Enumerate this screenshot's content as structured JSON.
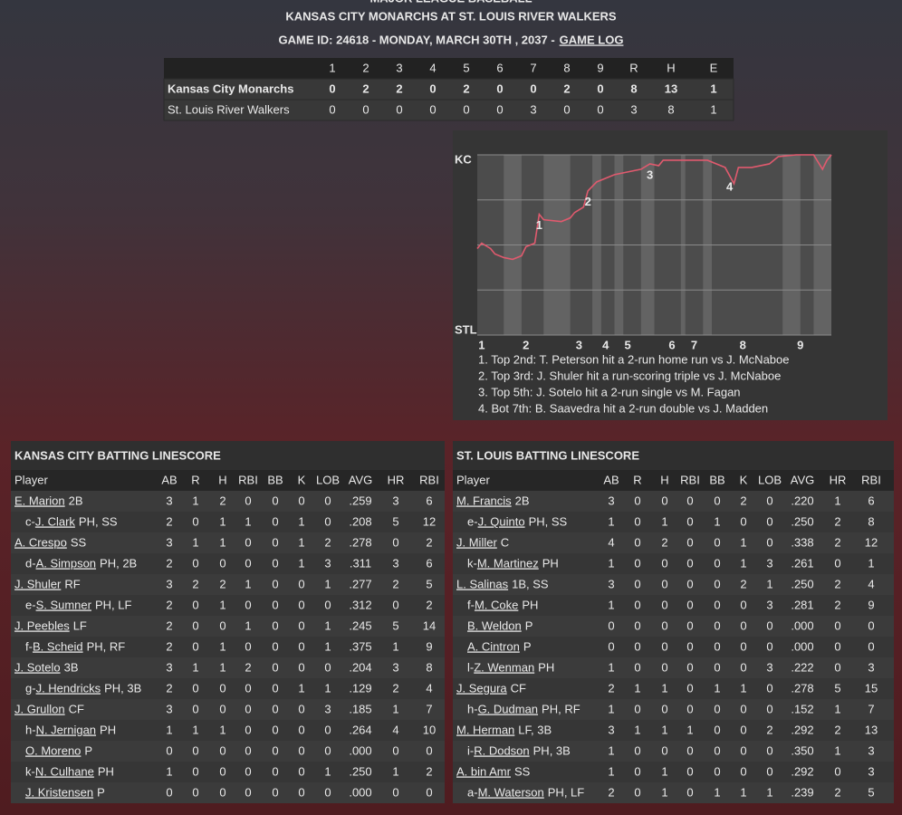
{
  "header": {
    "league": "MAJOR LEAGUE BASEBALL",
    "title": "KANSAS CITY MONARCHS AT ST. LOUIS RIVER WALKERS",
    "subtitle": "GAME ID: 24618 - MONDAY, MARCH 30TH , 2037 -",
    "game_log_link": "GAME LOG"
  },
  "linescore": {
    "columns": [
      "1",
      "2",
      "3",
      "4",
      "5",
      "6",
      "7",
      "8",
      "9",
      "R",
      "H",
      "E"
    ],
    "rows": [
      {
        "team": "Kansas City Monarchs",
        "bold": true,
        "cells": [
          0,
          2,
          2,
          0,
          2,
          0,
          0,
          2,
          0,
          8,
          13,
          1
        ]
      },
      {
        "team": "St. Louis River Walkers",
        "cells": [
          0,
          0,
          0,
          0,
          0,
          0,
          3,
          0,
          0,
          3,
          8,
          1
        ]
      }
    ]
  },
  "win_probability": {
    "type": "line",
    "top_label": "KC",
    "bottom_label": "STL",
    "color": "#e05a6e",
    "xlim": [
      0,
      80
    ],
    "ylim": [
      0,
      100
    ],
    "yticks": [
      0,
      25,
      50,
      75,
      100
    ],
    "x": [
      0,
      1,
      3,
      4,
      6,
      8,
      10,
      11,
      13,
      14,
      15,
      19,
      21,
      22,
      24,
      25,
      27,
      29,
      31,
      33,
      37,
      39,
      41,
      42,
      48,
      52,
      56,
      58,
      59,
      62,
      66,
      68,
      72,
      76,
      78,
      79,
      80
    ],
    "values": [
      48,
      51,
      48,
      45,
      43,
      42,
      44,
      49,
      51,
      67,
      64,
      63,
      65,
      68,
      71,
      80,
      85,
      87,
      89,
      90,
      92,
      95,
      94,
      97,
      97,
      97,
      93,
      84,
      93,
      93,
      95,
      99,
      100,
      100,
      92,
      97,
      100
    ],
    "shaded": [
      [
        6,
        10
      ],
      [
        15,
        21
      ],
      [
        26,
        28
      ],
      [
        31,
        33
      ],
      [
        37,
        40
      ],
      [
        46,
        47
      ],
      [
        51,
        53
      ],
      [
        69,
        73
      ],
      [
        76,
        80
      ]
    ],
    "innings": {
      "labels": [
        "1",
        "2",
        "3",
        "4",
        "5",
        "6",
        "7",
        "8",
        "9"
      ],
      "x": [
        1,
        11,
        23,
        29,
        34,
        44,
        49,
        60,
        73
      ]
    },
    "markers": [
      {
        "label": "1",
        "x": 14
      },
      {
        "label": "2",
        "x": 25
      },
      {
        "label": "3",
        "x": 39
      },
      {
        "label": "4",
        "x": 57
      }
    ],
    "annotations": [
      "1. Top 2nd: T. Peterson hit a 2-run home run vs J. McNaboe",
      "2. Top 3rd: J. Shuler hit a run-scoring triple vs J. McNaboe",
      "3. Top 5th: J. Sotelo hit a 2-run single vs M. Fagan",
      "4. Bot 7th: B. Saavedra hit a 2-run double vs J. Madden"
    ]
  },
  "batting": [
    {
      "title": "KANSAS CITY BATTING LINESCORE",
      "columns": [
        "Player",
        "AB",
        "R",
        "H",
        "RBI",
        "BB",
        "K",
        "LOB",
        "AVG",
        "HR",
        "RBI"
      ],
      "rows": [
        {
          "name": "E. Marion",
          "pos": "2B",
          "stats": [
            "3",
            "1",
            "2",
            "0",
            "0",
            "0",
            "0",
            ".259",
            "3",
            "6"
          ]
        },
        {
          "prefix": "c-",
          "name": "J. Clark",
          "pos": "PH, SS",
          "indent": true,
          "stats": [
            "2",
            "0",
            "1",
            "1",
            "0",
            "1",
            "0",
            ".208",
            "5",
            "12"
          ]
        },
        {
          "name": "A. Crespo",
          "pos": "SS",
          "stats": [
            "3",
            "1",
            "1",
            "0",
            "0",
            "1",
            "2",
            ".278",
            "0",
            "2"
          ]
        },
        {
          "prefix": "d-",
          "name": "A. Simpson",
          "pos": "PH, 2B",
          "indent": true,
          "stats": [
            "2",
            "0",
            "0",
            "0",
            "0",
            "1",
            "3",
            ".311",
            "3",
            "6"
          ]
        },
        {
          "name": "J. Shuler",
          "pos": "RF",
          "stats": [
            "3",
            "2",
            "2",
            "1",
            "0",
            "0",
            "1",
            ".277",
            "2",
            "5"
          ]
        },
        {
          "prefix": "e-",
          "name": "S. Sumner",
          "pos": "PH, LF",
          "indent": true,
          "stats": [
            "2",
            "0",
            "1",
            "0",
            "0",
            "0",
            "0",
            ".312",
            "0",
            "2"
          ]
        },
        {
          "name": "J. Peebles",
          "pos": "LF",
          "stats": [
            "2",
            "0",
            "0",
            "1",
            "0",
            "0",
            "1",
            ".245",
            "5",
            "14"
          ]
        },
        {
          "prefix": "f-",
          "name": "B. Scheid",
          "pos": "PH, RF",
          "indent": true,
          "stats": [
            "2",
            "0",
            "1",
            "0",
            "0",
            "0",
            "1",
            ".375",
            "1",
            "9"
          ]
        },
        {
          "name": "J. Sotelo",
          "pos": "3B",
          "stats": [
            "3",
            "1",
            "1",
            "2",
            "0",
            "0",
            "0",
            ".204",
            "3",
            "8"
          ]
        },
        {
          "prefix": "g-",
          "name": "J. Hendricks",
          "pos": "PH, 3B",
          "indent": true,
          "stats": [
            "2",
            "0",
            "0",
            "0",
            "0",
            "1",
            "1",
            ".129",
            "2",
            "4"
          ]
        },
        {
          "name": "J. Grullon",
          "pos": "CF",
          "stats": [
            "3",
            "0",
            "0",
            "0",
            "0",
            "0",
            "3",
            ".185",
            "1",
            "7"
          ]
        },
        {
          "prefix": "h-",
          "name": "N. Jernigan",
          "pos": "PH",
          "indent": true,
          "stats": [
            "1",
            "1",
            "1",
            "0",
            "0",
            "0",
            "0",
            ".264",
            "4",
            "10"
          ]
        },
        {
          "name": "O. Moreno",
          "pos": "P",
          "indent": true,
          "stats": [
            "0",
            "0",
            "0",
            "0",
            "0",
            "0",
            "0",
            ".000",
            "0",
            "0"
          ]
        },
        {
          "prefix": "k-",
          "name": "N. Culhane",
          "pos": "PH",
          "indent": true,
          "stats": [
            "1",
            "0",
            "0",
            "0",
            "0",
            "0",
            "1",
            ".250",
            "1",
            "2"
          ]
        },
        {
          "name": "J. Kristensen",
          "pos": "P",
          "indent": true,
          "stats": [
            "0",
            "0",
            "0",
            "0",
            "0",
            "0",
            "0",
            ".000",
            "0",
            "0"
          ]
        }
      ]
    },
    {
      "title": "ST. LOUIS BATTING LINESCORE",
      "columns": [
        "Player",
        "AB",
        "R",
        "H",
        "RBI",
        "BB",
        "K",
        "LOB",
        "AVG",
        "HR",
        "RBI"
      ],
      "rows": [
        {
          "name": "M. Francis",
          "pos": "2B",
          "stats": [
            "3",
            "0",
            "0",
            "0",
            "0",
            "2",
            "0",
            ".220",
            "1",
            "6"
          ]
        },
        {
          "prefix": "e-",
          "name": "J. Quinto",
          "pos": "PH, SS",
          "indent": true,
          "stats": [
            "1",
            "0",
            "1",
            "0",
            "1",
            "0",
            "0",
            ".250",
            "2",
            "8"
          ]
        },
        {
          "name": "J. Miller",
          "pos": "C",
          "stats": [
            "4",
            "0",
            "2",
            "0",
            "0",
            "1",
            "0",
            ".338",
            "2",
            "12"
          ]
        },
        {
          "prefix": "k-",
          "name": "M. Martinez",
          "pos": "PH",
          "indent": true,
          "stats": [
            "1",
            "0",
            "0",
            "0",
            "0",
            "1",
            "3",
            ".261",
            "0",
            "1"
          ]
        },
        {
          "name": "L. Salinas",
          "pos": "1B, SS",
          "stats": [
            "3",
            "0",
            "0",
            "0",
            "0",
            "2",
            "1",
            ".250",
            "2",
            "4"
          ]
        },
        {
          "prefix": "f-",
          "name": "M. Coke",
          "pos": "PH",
          "indent": true,
          "stats": [
            "1",
            "0",
            "0",
            "0",
            "0",
            "0",
            "3",
            ".281",
            "2",
            "9"
          ]
        },
        {
          "name": "B. Weldon",
          "pos": "P",
          "indent": true,
          "stats": [
            "0",
            "0",
            "0",
            "0",
            "0",
            "0",
            "0",
            ".000",
            "0",
            "0"
          ]
        },
        {
          "name": "A. Cintron",
          "pos": "P",
          "indent": true,
          "stats": [
            "0",
            "0",
            "0",
            "0",
            "0",
            "0",
            "0",
            ".000",
            "0",
            "0"
          ]
        },
        {
          "prefix": "l-",
          "name": "Z. Wenman",
          "pos": "PH",
          "indent": true,
          "stats": [
            "1",
            "0",
            "0",
            "0",
            "0",
            "0",
            "3",
            ".222",
            "0",
            "3"
          ]
        },
        {
          "name": "J. Segura",
          "pos": "CF",
          "stats": [
            "2",
            "1",
            "1",
            "0",
            "1",
            "1",
            "0",
            ".278",
            "5",
            "15"
          ]
        },
        {
          "prefix": "h-",
          "name": "G. Dudman",
          "pos": "PH, RF",
          "indent": true,
          "stats": [
            "1",
            "0",
            "0",
            "0",
            "0",
            "0",
            "0",
            ".152",
            "1",
            "7"
          ]
        },
        {
          "name": "M. Herman",
          "pos": "LF, 3B",
          "stats": [
            "3",
            "1",
            "1",
            "1",
            "0",
            "0",
            "2",
            ".292",
            "2",
            "13"
          ]
        },
        {
          "prefix": "i-",
          "name": "R. Dodson",
          "pos": "PH, 3B",
          "indent": true,
          "stats": [
            "1",
            "0",
            "0",
            "0",
            "0",
            "0",
            "0",
            ".350",
            "1",
            "3"
          ]
        },
        {
          "name": "A. bin Amr",
          "pos": "SS",
          "stats": [
            "1",
            "0",
            "1",
            "0",
            "0",
            "0",
            "0",
            ".292",
            "0",
            "3"
          ]
        },
        {
          "prefix": "a-",
          "name": "M. Waterson",
          "pos": "PH, LF",
          "indent": true,
          "stats": [
            "2",
            "0",
            "1",
            "0",
            "1",
            "1",
            "1",
            ".239",
            "2",
            "5"
          ]
        }
      ]
    }
  ]
}
